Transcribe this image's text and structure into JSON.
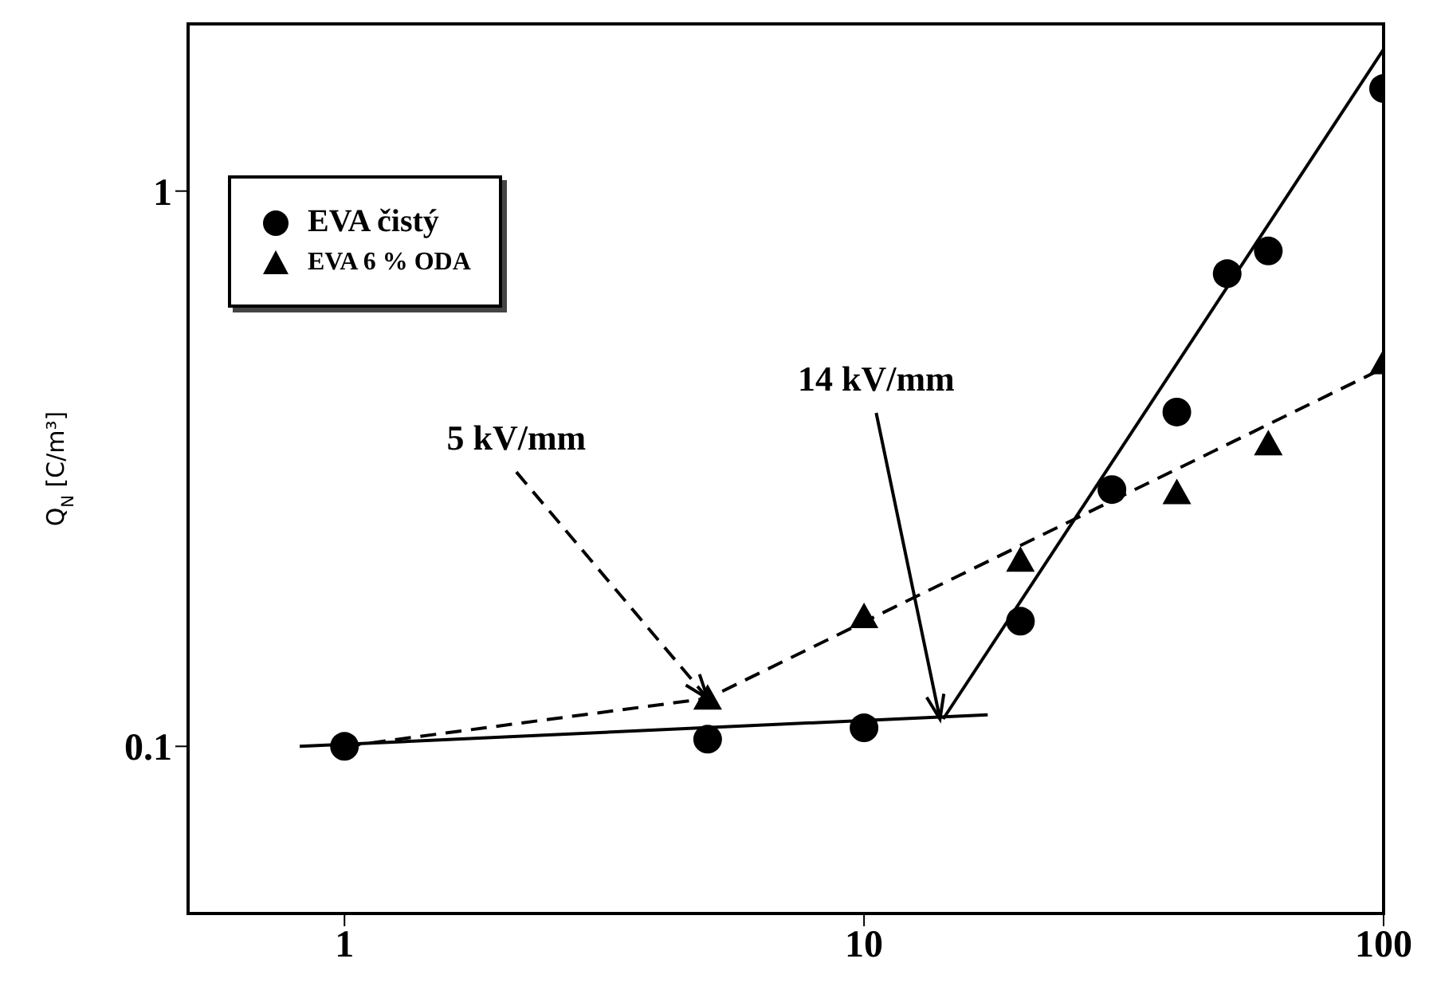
{
  "chart_data": {
    "type": "scatter",
    "ylabel": "Q$_{N}$ [C/m³]",
    "log": "xy",
    "xlim": [
      0.5,
      100
    ],
    "ylim": [
      0.05,
      2
    ],
    "xticks": [
      1,
      10,
      100
    ],
    "yticks": [
      0.1,
      1
    ],
    "legend": "top left",
    "series": [
      {
        "name": "EVA čistý",
        "type": "scatter",
        "marker": "circle",
        "color": "#000000",
        "x": [
          1,
          5,
          10,
          20,
          30,
          40,
          50,
          60,
          100
        ],
        "values": [
          0.1,
          0.103,
          0.108,
          0.168,
          0.29,
          0.4,
          0.71,
          0.78,
          1.53
        ]
      },
      {
        "name": "EVA 6 % ODA",
        "type": "scatter",
        "marker": "triangle",
        "color": "#000000",
        "x": [
          5,
          10,
          20,
          40,
          60,
          100
        ],
        "values": [
          0.122,
          0.171,
          0.216,
          0.286,
          0.35,
          0.49
        ]
      },
      {
        "type": "line",
        "marker": "none",
        "line_style": "solid",
        "color": "#000000",
        "x": [
          0.82,
          17.3
        ],
        "values": [
          0.1,
          0.114
        ]
      },
      {
        "type": "line",
        "marker": "none",
        "line_style": "solid",
        "color": "#000000",
        "x": [
          14.2,
          100
        ],
        "values": [
          0.112,
          1.8
        ]
      },
      {
        "type": "line",
        "marker": "none",
        "line_style": "dashed",
        "color": "#000000",
        "x": [
          1,
          5,
          100
        ],
        "values": [
          0.1,
          0.122,
          0.48
        ]
      }
    ],
    "annotations": [
      {
        "text": "5 kV/mm",
        "x": 5,
        "y": 0.122
      },
      {
        "text": "14 kV/mm",
        "x": 14,
        "y": 0.112
      }
    ]
  }
}
